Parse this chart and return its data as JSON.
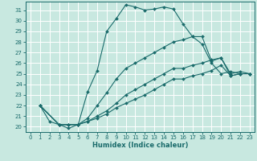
{
  "xlabel": "Humidex (Indice chaleur)",
  "bg_color": "#c8e8e0",
  "grid_color": "#ffffff",
  "line_color": "#1a6b6b",
  "xlim": [
    -0.5,
    23.5
  ],
  "ylim": [
    19.5,
    31.8
  ],
  "xticks": [
    0,
    1,
    2,
    3,
    4,
    5,
    6,
    7,
    8,
    9,
    10,
    11,
    12,
    13,
    14,
    15,
    16,
    17,
    18,
    19,
    20,
    21,
    22,
    23
  ],
  "yticks": [
    20,
    21,
    22,
    23,
    24,
    25,
    26,
    27,
    28,
    29,
    30,
    31
  ],
  "series": [
    {
      "x": [
        1,
        2,
        3,
        4,
        5,
        6,
        7,
        8,
        9,
        10,
        11,
        12,
        13,
        14,
        15,
        16,
        17,
        18,
        19,
        20,
        21,
        22,
        23
      ],
      "y": [
        22.0,
        20.5,
        20.2,
        19.85,
        20.2,
        23.3,
        25.3,
        29.0,
        30.2,
        31.5,
        31.3,
        31.0,
        31.1,
        31.3,
        31.1,
        29.7,
        28.5,
        27.8,
        26.0,
        25.0,
        25.2,
        25.0,
        25.0
      ]
    },
    {
      "x": [
        1,
        3,
        4,
        5,
        6,
        7,
        8,
        9,
        10,
        11,
        12,
        13,
        14,
        15,
        16,
        17,
        18,
        19,
        20,
        21,
        22,
        23
      ],
      "y": [
        22.0,
        20.2,
        20.2,
        20.2,
        20.8,
        22.0,
        23.2,
        24.5,
        25.5,
        26.0,
        26.5,
        27.0,
        27.5,
        28.0,
        28.2,
        28.5,
        28.5,
        26.2,
        26.5,
        25.0,
        25.2,
        25.0
      ]
    },
    {
      "x": [
        1,
        3,
        4,
        5,
        6,
        7,
        8,
        9,
        10,
        11,
        12,
        13,
        14,
        15,
        16,
        17,
        18,
        19,
        20,
        21,
        22,
        23
      ],
      "y": [
        22.0,
        20.2,
        20.2,
        20.2,
        20.5,
        21.0,
        21.5,
        22.2,
        23.0,
        23.5,
        24.0,
        24.5,
        25.0,
        25.5,
        25.5,
        25.8,
        26.0,
        26.3,
        26.5,
        24.8,
        25.0,
        25.0
      ]
    },
    {
      "x": [
        1,
        3,
        4,
        5,
        6,
        7,
        8,
        9,
        10,
        11,
        12,
        13,
        14,
        15,
        16,
        17,
        18,
        19,
        20,
        21,
        22,
        23
      ],
      "y": [
        22.0,
        20.2,
        20.2,
        20.2,
        20.5,
        20.8,
        21.2,
        21.8,
        22.2,
        22.6,
        23.0,
        23.5,
        24.0,
        24.5,
        24.5,
        24.8,
        25.0,
        25.3,
        25.8,
        24.8,
        25.0,
        25.0
      ]
    }
  ]
}
